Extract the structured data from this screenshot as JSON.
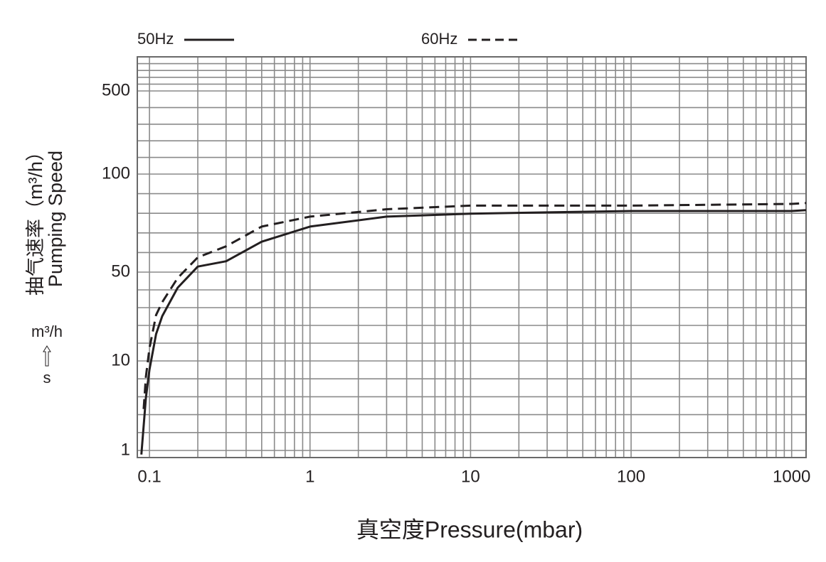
{
  "chart_data": {
    "type": "line",
    "y_label": [
      "抽气速率（m³/h）",
      "Pumping Speed"
    ],
    "x_label": "真空度Pressure(mbar)",
    "unit_annotation": [
      "m³/h",
      "s"
    ],
    "xscale": "log",
    "xlim": [
      0.084,
      1230
    ],
    "xticks": [
      0.1,
      1,
      10,
      100,
      1000
    ],
    "ylim": [
      0.83,
      970
    ],
    "yticks": [
      1,
      10,
      50,
      100,
      500
    ],
    "grid": true,
    "legend": "top",
    "series": [
      {
        "name": "50Hz",
        "color": "#231f20",
        "dash": false,
        "x": [
          0.089,
          0.095,
          0.1,
          0.11,
          0.12,
          0.15,
          0.2,
          0.3,
          0.5,
          1,
          3,
          10,
          100,
          1000,
          1230
        ],
        "values": [
          0.9,
          3.9,
          8.0,
          16.3,
          22.5,
          37.7,
          52,
          54,
          62,
          69,
          74,
          75.6,
          77,
          77,
          77.5
        ]
      },
      {
        "name": "60Hz",
        "color": "#231f20",
        "dash": true,
        "x": [
          0.092,
          0.095,
          0.1,
          0.11,
          0.12,
          0.15,
          0.2,
          0.3,
          0.5,
          1,
          3,
          10,
          100,
          1000,
          1230
        ],
        "values": [
          2.9,
          6.7,
          12.6,
          23,
          29,
          45,
          55.5,
          60,
          69,
          74,
          78,
          80,
          80,
          81,
          81.5
        ]
      }
    ]
  }
}
